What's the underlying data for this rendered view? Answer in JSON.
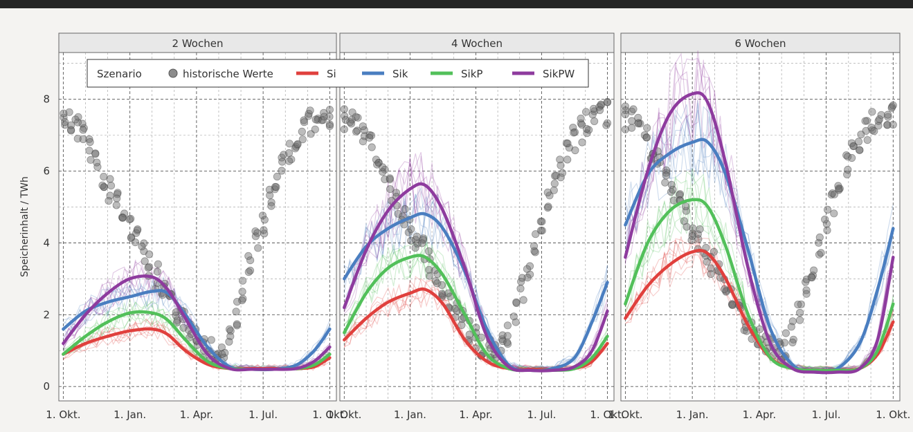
{
  "chart_data": {
    "type": "line",
    "ylabel": "Speicherinhalt / TWh",
    "yticks": [
      "0",
      "2",
      "4",
      "6",
      "8"
    ],
    "ylim": [
      -0.4,
      9.3
    ],
    "xlim": [
      -0.2,
      12.3
    ],
    "xticks": [
      {
        "x": 0,
        "label": "1. Okt."
      },
      {
        "x": 3,
        "label": "1. Jan."
      },
      {
        "x": 6,
        "label": "1. Apr."
      },
      {
        "x": 9,
        "label": "1. Jul."
      },
      {
        "x": 12,
        "label": "1. Okt."
      }
    ],
    "grid": true,
    "legend": {
      "position": "top-left",
      "title": "Szenario",
      "items": [
        {
          "label": "historische Werte",
          "kind": "point",
          "color": "#8c8c8c"
        },
        {
          "label": "Si",
          "kind": "line",
          "color": "#e0403d"
        },
        {
          "label": "Sik",
          "kind": "line",
          "color": "#4a7ec0"
        },
        {
          "label": "SikP",
          "kind": "line",
          "color": "#52c05a"
        },
        {
          "label": "SikPW",
          "kind": "line",
          "color": "#8e3b9e"
        }
      ]
    },
    "historical": {
      "name": "historische Werte",
      "color": "#666666",
      "x": [
        0,
        0.5,
        1,
        1.5,
        2,
        2.5,
        3,
        3.5,
        4,
        4.5,
        5,
        5.5,
        6,
        6.5,
        6.9,
        7.3,
        7.7,
        8,
        8.5,
        9,
        9.5,
        10,
        10.5,
        11,
        11.5,
        12
      ],
      "y": [
        7.5,
        7.3,
        6.9,
        6.3,
        5.6,
        5.0,
        4.4,
        3.9,
        3.3,
        2.7,
        2.2,
        1.7,
        1.3,
        1.05,
        1.0,
        1.2,
        1.8,
        2.5,
        3.6,
        4.6,
        5.5,
        6.3,
        6.9,
        7.3,
        7.5,
        7.6
      ]
    },
    "panels": [
      {
        "title": "2 Wochen",
        "series": [
          {
            "name": "Si",
            "color": "#e0403d",
            "x": [
              0,
              1,
              2,
              3,
              4,
              4.7,
              5.5,
              6.5,
              7.5,
              8.5,
              9.5,
              10.5,
              11.3,
              12
            ],
            "y": [
              0.9,
              1.2,
              1.4,
              1.55,
              1.6,
              1.45,
              1.0,
              0.62,
              0.5,
              0.5,
              0.5,
              0.5,
              0.55,
              0.8
            ]
          },
          {
            "name": "Sik",
            "color": "#4a7ec0",
            "x": [
              0,
              1,
              2,
              3,
              4,
              4.7,
              5.5,
              6.5,
              7.5,
              8.5,
              9.5,
              10.5,
              11.3,
              12
            ],
            "y": [
              1.6,
              2.1,
              2.35,
              2.5,
              2.65,
              2.6,
              2.0,
              1.1,
              0.55,
              0.48,
              0.48,
              0.6,
              1.0,
              1.6
            ]
          },
          {
            "name": "SikP",
            "color": "#52c05a",
            "x": [
              0,
              1,
              2,
              3,
              4,
              4.7,
              5.5,
              6.5,
              7.5,
              8.5,
              9.5,
              10.5,
              11.3,
              12
            ],
            "y": [
              0.9,
              1.4,
              1.8,
              2.05,
              2.05,
              1.85,
              1.3,
              0.7,
              0.5,
              0.48,
              0.48,
              0.5,
              0.6,
              0.9
            ]
          },
          {
            "name": "SikPW",
            "color": "#8e3b9e",
            "x": [
              0,
              1,
              2,
              3,
              4,
              4.7,
              5.5,
              6.5,
              7.5,
              8.5,
              9.5,
              10.5,
              11.3,
              12
            ],
            "y": [
              1.2,
              2.0,
              2.6,
              3.0,
              3.05,
              2.7,
              1.9,
              0.9,
              0.5,
              0.48,
              0.48,
              0.5,
              0.7,
              1.1
            ]
          }
        ]
      },
      {
        "title": "4 Wochen",
        "series": [
          {
            "name": "Si",
            "color": "#e0403d",
            "x": [
              0,
              1,
              2,
              3,
              3.7,
              4.5,
              5.5,
              6.5,
              7.5,
              8.5,
              9.5,
              10.5,
              11.3,
              12
            ],
            "y": [
              1.3,
              1.9,
              2.35,
              2.6,
              2.7,
              2.3,
              1.3,
              0.7,
              0.5,
              0.48,
              0.48,
              0.5,
              0.7,
              1.2
            ]
          },
          {
            "name": "Sik",
            "color": "#4a7ec0",
            "x": [
              0,
              1,
              2,
              3,
              3.7,
              4.5,
              5.5,
              6.5,
              7.5,
              8.5,
              9.5,
              10.5,
              11.3,
              12
            ],
            "y": [
              3.0,
              3.9,
              4.4,
              4.7,
              4.8,
              4.4,
              3.2,
              1.6,
              0.6,
              0.45,
              0.5,
              0.8,
              1.8,
              2.9
            ]
          },
          {
            "name": "SikP",
            "color": "#52c05a",
            "x": [
              0,
              1,
              2,
              3,
              3.7,
              4.5,
              5.5,
              6.5,
              7.5,
              8.5,
              9.5,
              10.5,
              11.3,
              12
            ],
            "y": [
              1.5,
              2.6,
              3.3,
              3.6,
              3.6,
              3.1,
              2.0,
              0.9,
              0.5,
              0.45,
              0.45,
              0.5,
              0.8,
              1.4
            ]
          },
          {
            "name": "SikPW",
            "color": "#8e3b9e",
            "x": [
              0,
              1,
              2,
              3,
              3.7,
              4.5,
              5.5,
              6.5,
              7.5,
              8.5,
              9.5,
              10.5,
              11.3,
              12
            ],
            "y": [
              2.2,
              3.8,
              4.9,
              5.5,
              5.6,
              4.9,
              3.3,
              1.4,
              0.55,
              0.45,
              0.45,
              0.55,
              1.0,
              2.1
            ]
          }
        ]
      },
      {
        "title": "6 Wochen",
        "series": [
          {
            "name": "Si",
            "color": "#e0403d",
            "x": [
              0,
              1,
              2,
              3,
              3.7,
              4.5,
              5.5,
              6.5,
              7.5,
              8.5,
              9.5,
              10.5,
              11.3,
              12
            ],
            "y": [
              1.9,
              2.8,
              3.4,
              3.75,
              3.7,
              3.0,
              1.7,
              0.8,
              0.5,
              0.45,
              0.45,
              0.5,
              0.9,
              1.8
            ]
          },
          {
            "name": "Sik",
            "color": "#4a7ec0",
            "x": [
              0,
              1,
              2,
              3,
              3.7,
              4.5,
              5.5,
              6.5,
              7.5,
              8.5,
              9.5,
              10.5,
              11.3,
              12
            ],
            "y": [
              4.5,
              5.9,
              6.5,
              6.8,
              6.8,
              5.9,
              3.8,
              1.6,
              0.6,
              0.4,
              0.5,
              1.2,
              2.7,
              4.4
            ]
          },
          {
            "name": "SikP",
            "color": "#52c05a",
            "x": [
              0,
              1,
              2,
              3,
              3.7,
              4.5,
              5.5,
              6.5,
              7.5,
              8.5,
              9.5,
              10.5,
              11.3,
              12
            ],
            "y": [
              2.3,
              4.0,
              4.9,
              5.2,
              5.0,
              3.9,
              2.0,
              0.8,
              0.5,
              0.45,
              0.45,
              0.5,
              1.0,
              2.3
            ]
          },
          {
            "name": "SikPW",
            "color": "#8e3b9e",
            "x": [
              0,
              1,
              2,
              3,
              3.7,
              4.5,
              5.5,
              6.5,
              7.5,
              8.5,
              9.5,
              10.5,
              11.3,
              12
            ],
            "y": [
              3.6,
              6.0,
              7.6,
              8.15,
              7.9,
              6.2,
              3.3,
              1.2,
              0.5,
              0.4,
              0.4,
              0.5,
              1.3,
              3.6
            ]
          }
        ]
      }
    ]
  }
}
